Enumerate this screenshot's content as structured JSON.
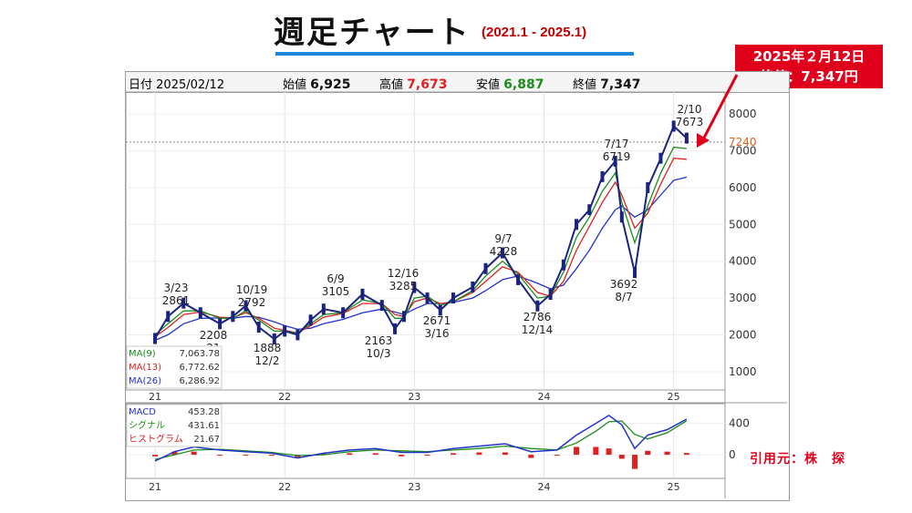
{
  "title": {
    "main": "週足チャート",
    "period": "(2021.1 - 2025.1)"
  },
  "callout": {
    "line1": "2025年２月12日",
    "line2": "終値：7,347円"
  },
  "source": "引用元：株　探",
  "header": {
    "date_label": "日付",
    "date_value": "2025/02/12",
    "open_label": "始値",
    "open_value": "6,925",
    "high_label": "高値",
    "high_value": "7,673",
    "low_label": "安値",
    "low_value": "6,887",
    "close_label": "終値",
    "close_value": "7,347"
  },
  "colors": {
    "accent_red": "#e0001b",
    "up": "#1a237e",
    "ma9": "#1c8c1c",
    "ma13": "#e02020",
    "ma26": "#2233cc",
    "callout_bg": "#e0001b",
    "underline": "#1e88d8"
  },
  "chart_data": [
    {
      "type": "line",
      "title": "週足チャート",
      "x_ticks": [
        "21",
        "22",
        "23",
        "24",
        "25"
      ],
      "ylim": [
        500,
        8600
      ],
      "y_ticks": [
        1000,
        2000,
        3000,
        4000,
        5000,
        6000,
        7000,
        8000
      ],
      "price_line": {
        "value": 7240,
        "label": "7240"
      },
      "x": [
        2021.0,
        2021.1,
        2021.22,
        2021.35,
        2021.5,
        2021.6,
        2021.7,
        2021.8,
        2021.92,
        2022.0,
        2022.1,
        2022.2,
        2022.3,
        2022.45,
        2022.6,
        2022.75,
        2022.85,
        2022.92,
        2023.0,
        2023.1,
        2023.2,
        2023.3,
        2023.45,
        2023.55,
        2023.68,
        2023.8,
        2023.95,
        2024.05,
        2024.15,
        2024.25,
        2024.35,
        2024.45,
        2024.55,
        2024.6,
        2024.7,
        2024.8,
        2024.9,
        2025.0,
        2025.1
      ],
      "series": [
        {
          "name": "close",
          "values": [
            1900,
            2500,
            2861,
            2600,
            2300,
            2500,
            2792,
            2208,
            1888,
            2100,
            2000,
            2400,
            2700,
            2600,
            3105,
            2800,
            2163,
            2500,
            3285,
            3000,
            2671,
            3000,
            3300,
            3800,
            4228,
            3500,
            2786,
            3100,
            3900,
            5000,
            5400,
            6300,
            6719,
            5200,
            3692,
            6000,
            6800,
            7673,
            7347
          ]
        },
        {
          "name": "MA(9)",
          "values": [
            2000,
            2300,
            2650,
            2650,
            2450,
            2450,
            2650,
            2400,
            2100,
            2100,
            2050,
            2300,
            2550,
            2600,
            2950,
            2850,
            2450,
            2450,
            3000,
            3050,
            2800,
            2900,
            3200,
            3600,
            4000,
            3650,
            3000,
            3050,
            3700,
            4650,
            5200,
            5900,
            6400,
            5600,
            4500,
            5500,
            6400,
            7100,
            7064
          ]
        },
        {
          "name": "MA(13)",
          "values": [
            1950,
            2200,
            2550,
            2620,
            2480,
            2460,
            2600,
            2450,
            2180,
            2120,
            2050,
            2250,
            2480,
            2580,
            2850,
            2850,
            2550,
            2500,
            2900,
            3000,
            2850,
            2900,
            3150,
            3450,
            3850,
            3700,
            3150,
            3050,
            3450,
            4300,
            4950,
            5600,
            6150,
            5800,
            4900,
            5300,
            6100,
            6800,
            6773
          ]
        },
        {
          "name": "MA(26)",
          "values": [
            1850,
            2000,
            2300,
            2450,
            2460,
            2450,
            2500,
            2480,
            2350,
            2250,
            2150,
            2180,
            2300,
            2420,
            2600,
            2700,
            2620,
            2550,
            2700,
            2850,
            2850,
            2880,
            3000,
            3200,
            3500,
            3600,
            3400,
            3250,
            3350,
            3800,
            4300,
            4900,
            5400,
            5500,
            5200,
            5400,
            5800,
            6200,
            6287
          ]
        }
      ],
      "annotations": [
        {
          "date": "3/23",
          "value": "2861"
        },
        {
          "date": "10/19",
          "value": "2792"
        },
        {
          "date": "2208",
          "value": "21"
        },
        {
          "date": "1888",
          "value": "12/2"
        },
        {
          "date": "6/9",
          "value": "3105"
        },
        {
          "date": "2163",
          "value": "10/3"
        },
        {
          "date": "12/16",
          "value": "3285"
        },
        {
          "date": "2671",
          "value": "3/16"
        },
        {
          "date": "9/7",
          "value": "4228"
        },
        {
          "date": "2786",
          "value": "12/14"
        },
        {
          "date": "7/17",
          "value": "6719"
        },
        {
          "date": "3692",
          "value": "8/7"
        },
        {
          "date": "2/10",
          "value": "7673"
        }
      ],
      "legend": [
        {
          "name": "MA(9)",
          "value": "7,063.78"
        },
        {
          "name": "MA(13)",
          "value": "6,772.62"
        },
        {
          "name": "MA(26)",
          "value": "6,286.92"
        }
      ]
    },
    {
      "type": "line",
      "x_ticks": [
        "21",
        "22",
        "23",
        "24",
        "25"
      ],
      "ylim": [
        -300,
        650
      ],
      "y_ticks": [
        0,
        400
      ],
      "x": [
        2021.0,
        2021.15,
        2021.3,
        2021.5,
        2021.7,
        2021.9,
        2022.1,
        2022.3,
        2022.5,
        2022.7,
        2022.9,
        2023.1,
        2023.3,
        2023.5,
        2023.7,
        2023.9,
        2024.1,
        2024.25,
        2024.4,
        2024.5,
        2024.6,
        2024.7,
        2024.8,
        2024.95,
        2025.1
      ],
      "series": [
        {
          "name": "MACD",
          "values": [
            -80,
            40,
            100,
            60,
            40,
            20,
            -40,
            20,
            60,
            80,
            30,
            30,
            80,
            110,
            140,
            40,
            60,
            250,
            400,
            500,
            380,
            80,
            250,
            320,
            453
          ]
        },
        {
          "name": "シグナル",
          "values": [
            -60,
            0,
            60,
            70,
            50,
            30,
            -10,
            0,
            40,
            60,
            50,
            40,
            60,
            80,
            110,
            80,
            60,
            150,
            300,
            420,
            430,
            260,
            200,
            280,
            432
          ]
        },
        {
          "name": "ヒストグラム",
          "values": [
            -20,
            40,
            40,
            -10,
            -10,
            -10,
            -30,
            20,
            20,
            20,
            -20,
            -10,
            20,
            30,
            30,
            -40,
            0,
            100,
            100,
            80,
            -50,
            -180,
            50,
            40,
            22
          ]
        }
      ],
      "legend": [
        {
          "name": "MACD",
          "value": "453.28"
        },
        {
          "name": "シグナル",
          "value": "431.61"
        },
        {
          "name": "ヒストグラム",
          "value": "21.67"
        }
      ]
    }
  ]
}
